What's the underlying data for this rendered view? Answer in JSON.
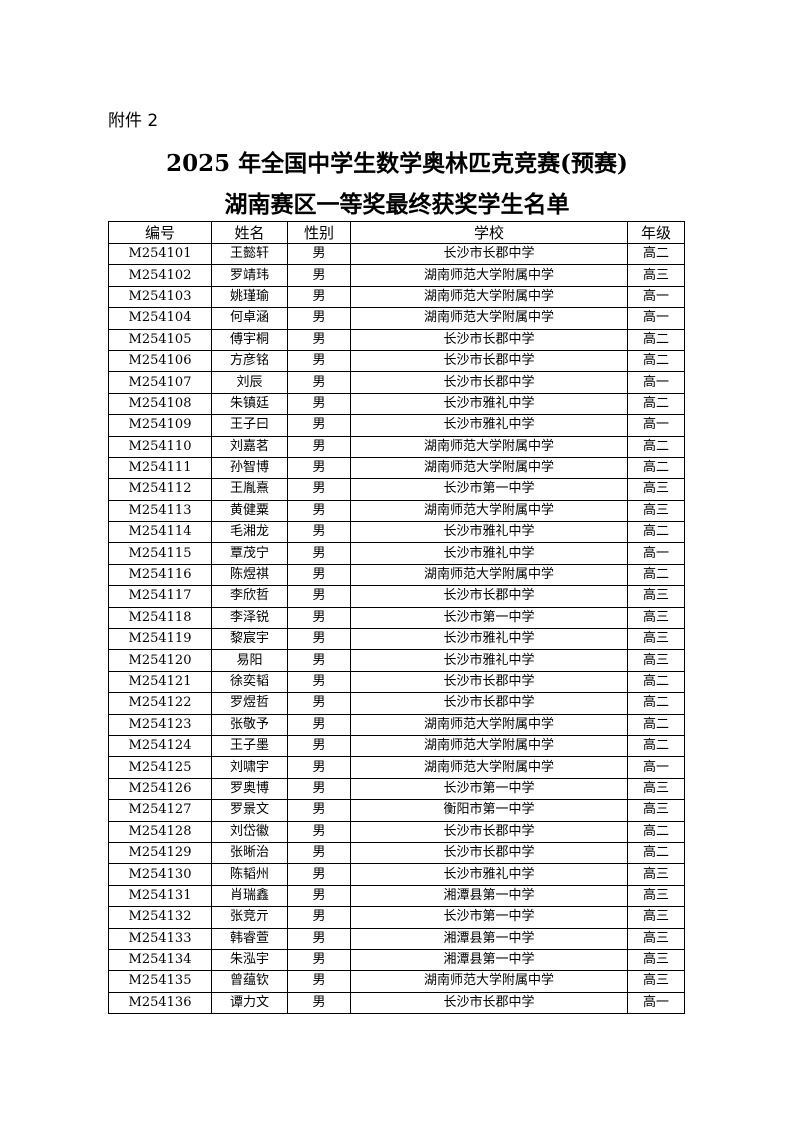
{
  "attachment_label": "附件 2",
  "title_line1": "2025 年全国中学生数学奥林匹克竞赛(预赛)",
  "title_line2": "湖南赛区一等奖最终获奖学生名单",
  "table": {
    "headers": [
      "编号",
      "姓名",
      "性别",
      "学校",
      "年级"
    ],
    "rows": [
      [
        "M254101",
        "王懿轩",
        "男",
        "长沙市长郡中学",
        "高二"
      ],
      [
        "M254102",
        "罗靖玮",
        "男",
        "湖南师范大学附属中学",
        "高三"
      ],
      [
        "M254103",
        "姚瑾瑜",
        "男",
        "湖南师范大学附属中学",
        "高一"
      ],
      [
        "M254104",
        "何卓涵",
        "男",
        "湖南师范大学附属中学",
        "高一"
      ],
      [
        "M254105",
        "傅宇桐",
        "男",
        "长沙市长郡中学",
        "高二"
      ],
      [
        "M254106",
        "方彦铭",
        "男",
        "长沙市长郡中学",
        "高二"
      ],
      [
        "M254107",
        "刘辰",
        "男",
        "长沙市长郡中学",
        "高一"
      ],
      [
        "M254108",
        "朱镇廷",
        "男",
        "长沙市雅礼中学",
        "高二"
      ],
      [
        "M254109",
        "王子曰",
        "男",
        "长沙市雅礼中学",
        "高一"
      ],
      [
        "M254110",
        "刘嘉茗",
        "男",
        "湖南师范大学附属中学",
        "高二"
      ],
      [
        "M254111",
        "孙智博",
        "男",
        "湖南师范大学附属中学",
        "高二"
      ],
      [
        "M254112",
        "王胤熹",
        "男",
        "长沙市第一中学",
        "高三"
      ],
      [
        "M254113",
        "黄健粟",
        "男",
        "湖南师范大学附属中学",
        "高三"
      ],
      [
        "M254114",
        "毛湘龙",
        "男",
        "长沙市雅礼中学",
        "高二"
      ],
      [
        "M254115",
        "覃茂宁",
        "男",
        "长沙市雅礼中学",
        "高一"
      ],
      [
        "M254116",
        "陈煜祺",
        "男",
        "湖南师范大学附属中学",
        "高二"
      ],
      [
        "M254117",
        "李欣哲",
        "男",
        "长沙市长郡中学",
        "高三"
      ],
      [
        "M254118",
        "李泽锐",
        "男",
        "长沙市第一中学",
        "高三"
      ],
      [
        "M254119",
        "黎宸宇",
        "男",
        "长沙市雅礼中学",
        "高三"
      ],
      [
        "M254120",
        "易阳",
        "男",
        "长沙市雅礼中学",
        "高三"
      ],
      [
        "M254121",
        "徐奕韬",
        "男",
        "长沙市长郡中学",
        "高二"
      ],
      [
        "M254122",
        "罗煜哲",
        "男",
        "长沙市长郡中学",
        "高二"
      ],
      [
        "M254123",
        "张敬予",
        "男",
        "湖南师范大学附属中学",
        "高二"
      ],
      [
        "M254124",
        "王子墨",
        "男",
        "湖南师范大学附属中学",
        "高二"
      ],
      [
        "M254125",
        "刘啸宇",
        "男",
        "湖南师范大学附属中学",
        "高一"
      ],
      [
        "M254126",
        "罗奥博",
        "男",
        "长沙市第一中学",
        "高三"
      ],
      [
        "M254127",
        "罗景文",
        "男",
        "衡阳市第一中学",
        "高三"
      ],
      [
        "M254128",
        "刘岱徽",
        "男",
        "长沙市长郡中学",
        "高二"
      ],
      [
        "M254129",
        "张晰治",
        "男",
        "长沙市长郡中学",
        "高二"
      ],
      [
        "M254130",
        "陈韬州",
        "男",
        "长沙市雅礼中学",
        "高三"
      ],
      [
        "M254131",
        "肖瑞鑫",
        "男",
        "湘潭县第一中学",
        "高三"
      ],
      [
        "M254132",
        "张竞亓",
        "男",
        "长沙市第一中学",
        "高三"
      ],
      [
        "M254133",
        "韩睿萱",
        "男",
        "湘潭县第一中学",
        "高三"
      ],
      [
        "M254134",
        "朱泓宇",
        "男",
        "湘潭县第一中学",
        "高三"
      ],
      [
        "M254135",
        "曾蕴钦",
        "男",
        "湖南师范大学附属中学",
        "高三"
      ],
      [
        "M254136",
        "谭力文",
        "男",
        "长沙市长郡中学",
        "高一"
      ]
    ]
  }
}
